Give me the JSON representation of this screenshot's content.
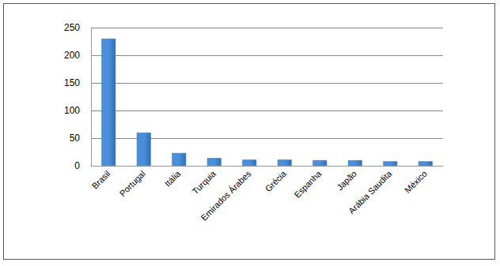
{
  "chart_data": {
    "type": "bar",
    "categories": [
      "Brasil",
      "Portugal",
      "Itália",
      "Turquia",
      "Emirados Árabes",
      "Grécia",
      "Espanha",
      "Japão",
      "Arábia Saudita",
      "México"
    ],
    "values": [
      230,
      60,
      23,
      14,
      11,
      11,
      10,
      10,
      8,
      8
    ],
    "color": "#4a8fdc",
    "ylim": [
      0,
      250
    ],
    "yticks": [
      0,
      50,
      100,
      150,
      200,
      250
    ],
    "grid": true
  }
}
